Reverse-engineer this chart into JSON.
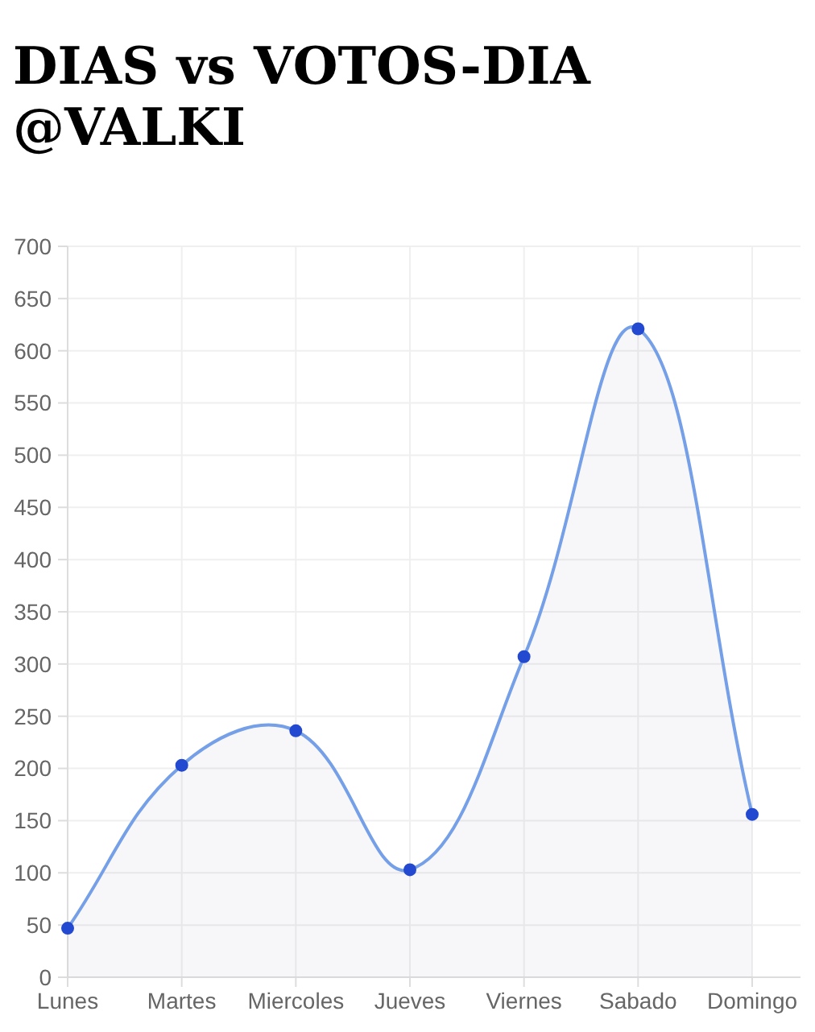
{
  "chart_data": {
    "type": "area",
    "title": "DIAS vs VOTOS-DIA @VALKI",
    "categories": [
      "Lunes",
      "Martes",
      "Miercoles",
      "Jueves",
      "Viernes",
      "Sabado",
      "Domingo"
    ],
    "series": [
      {
        "color": "#75a0e8",
        "colors": [
          "#2249d0",
          "#2249d0",
          "#2249d0",
          "#2249d0",
          "#2249d0",
          "#2249d0",
          "#2249d0"
        ],
        "values": [
          47,
          203,
          236,
          103,
          307,
          621,
          156
        ]
      }
    ],
    "ylim": [
      0,
      700
    ],
    "yticks": [
      0,
      50,
      100,
      150,
      200,
      250,
      300,
      350,
      400,
      450,
      500,
      550,
      600,
      650,
      700
    ],
    "grid": true,
    "marker": "circle"
  }
}
